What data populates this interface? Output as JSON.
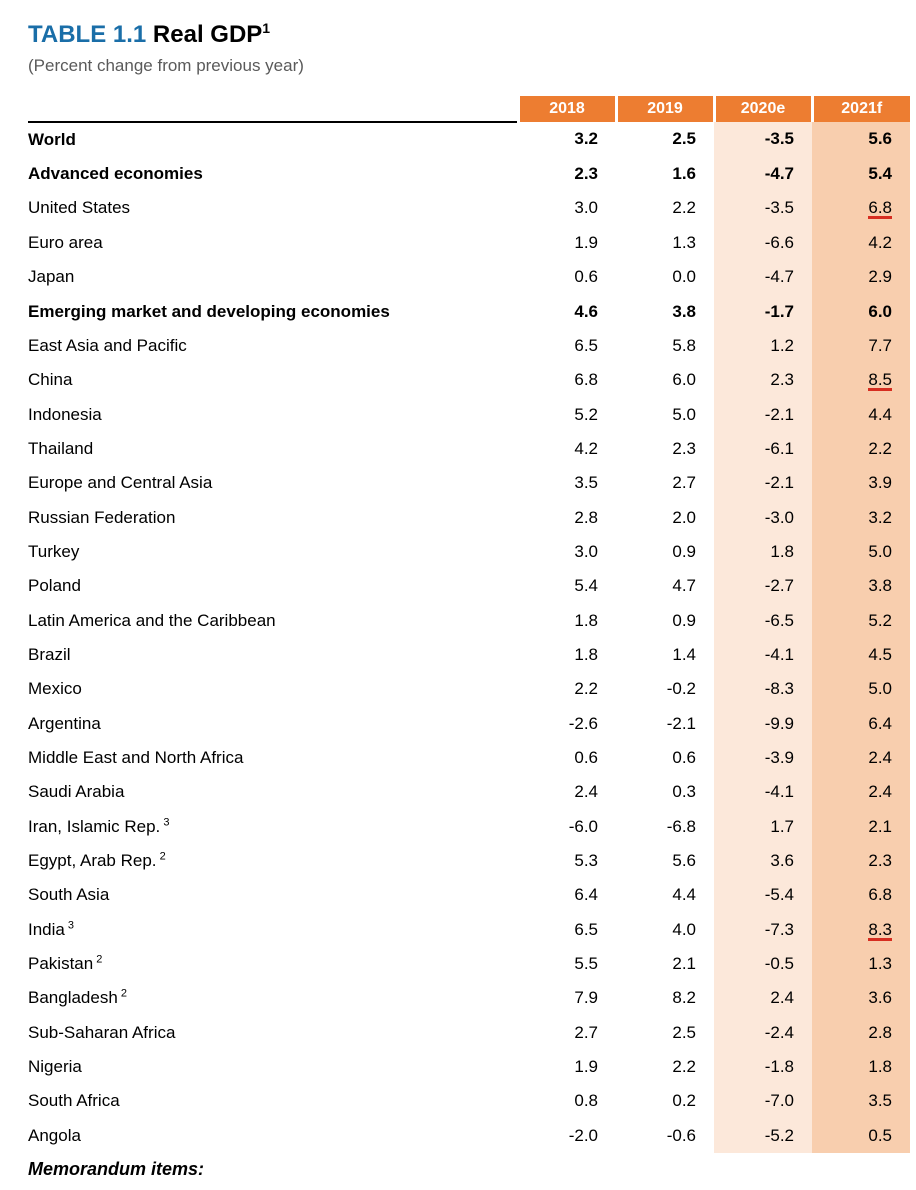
{
  "title_label": "TABLE 1.1",
  "title_text": "Real GDP",
  "title_sup": "1",
  "subtitle": "(Percent change from previous year)",
  "columns": [
    "2018",
    "2019",
    "2020e",
    "2021f"
  ],
  "colors": {
    "header_bg": "#ed7d31",
    "header_fg": "#ffffff",
    "col2020_bg": "#fce8da",
    "col2021_bg": "#f8ceae",
    "title_label": "#1a6ea8",
    "underline": "#d62d20"
  },
  "font": {
    "family": "Arial",
    "body_size_pt": 13,
    "title_size_pt": 18
  },
  "rows": [
    {
      "name": "World",
      "level": 0,
      "v": [
        "3.2",
        "2.5",
        "-3.5",
        "5.6"
      ]
    },
    {
      "name": "Advanced economies",
      "level": 1,
      "v": [
        "2.3",
        "1.6",
        "-4.7",
        "5.4"
      ]
    },
    {
      "name": "United States",
      "level": 2,
      "v": [
        "3.0",
        "2.2",
        "-3.5",
        "6.8"
      ],
      "underline_2021": true
    },
    {
      "name": "Euro area",
      "level": 2,
      "v": [
        "1.9",
        "1.3",
        "-6.6",
        "4.2"
      ]
    },
    {
      "name": "Japan",
      "level": 2,
      "v": [
        "0.6",
        "0.0",
        "-4.7",
        "2.9"
      ]
    },
    {
      "name": "Emerging market and developing economies",
      "level": 1,
      "v": [
        "4.6",
        "3.8",
        "-1.7",
        "6.0"
      ]
    },
    {
      "name": "East Asia and Pacific",
      "level": 2,
      "v": [
        "6.5",
        "5.8",
        "1.2",
        "7.7"
      ]
    },
    {
      "name": "China",
      "level": 3,
      "v": [
        "6.8",
        "6.0",
        "2.3",
        "8.5"
      ],
      "underline_2021": true
    },
    {
      "name": "Indonesia",
      "level": 3,
      "v": [
        "5.2",
        "5.0",
        "-2.1",
        "4.4"
      ]
    },
    {
      "name": "Thailand",
      "level": 3,
      "v": [
        "4.2",
        "2.3",
        "-6.1",
        "2.2"
      ]
    },
    {
      "name": "Europe and Central Asia",
      "level": 2,
      "v": [
        "3.5",
        "2.7",
        "-2.1",
        "3.9"
      ]
    },
    {
      "name": "Russian Federation",
      "level": 3,
      "v": [
        "2.8",
        "2.0",
        "-3.0",
        "3.2"
      ]
    },
    {
      "name": "Turkey",
      "level": 3,
      "v": [
        "3.0",
        "0.9",
        "1.8",
        "5.0"
      ]
    },
    {
      "name": "Poland",
      "level": 3,
      "v": [
        "5.4",
        "4.7",
        "-2.7",
        "3.8"
      ]
    },
    {
      "name": "Latin America and the Caribbean",
      "level": 2,
      "v": [
        "1.8",
        "0.9",
        "-6.5",
        "5.2"
      ]
    },
    {
      "name": "Brazil",
      "level": 3,
      "v": [
        "1.8",
        "1.4",
        "-4.1",
        "4.5"
      ]
    },
    {
      "name": "Mexico",
      "level": 3,
      "v": [
        "2.2",
        "-0.2",
        "-8.3",
        "5.0"
      ]
    },
    {
      "name": "Argentina",
      "level": 3,
      "v": [
        "-2.6",
        "-2.1",
        "-9.9",
        "6.4"
      ]
    },
    {
      "name": "Middle East and North Africa",
      "level": 2,
      "v": [
        "0.6",
        "0.6",
        "-3.9",
        "2.4"
      ]
    },
    {
      "name": "Saudi Arabia",
      "level": 3,
      "v": [
        "2.4",
        "0.3",
        "-4.1",
        "2.4"
      ]
    },
    {
      "name": "Iran, Islamic Rep.",
      "sup": "3",
      "level": 3,
      "v": [
        "-6.0",
        "-6.8",
        "1.7",
        "2.1"
      ]
    },
    {
      "name": "Egypt, Arab Rep.",
      "sup": "2",
      "level": 3,
      "v": [
        "5.3",
        "5.6",
        "3.6",
        "2.3"
      ]
    },
    {
      "name": "South Asia",
      "level": 2,
      "v": [
        "6.4",
        "4.4",
        "-5.4",
        "6.8"
      ]
    },
    {
      "name": "India",
      "sup": "3",
      "level": 3,
      "v": [
        "6.5",
        "4.0",
        "-7.3",
        "8.3"
      ],
      "underline_2021": true
    },
    {
      "name": "Pakistan",
      "sup": "2",
      "level": 3,
      "v": [
        "5.5",
        "2.1",
        "-0.5",
        "1.3"
      ]
    },
    {
      "name": "Bangladesh",
      "sup": "2",
      "level": 3,
      "v": [
        "7.9",
        "8.2",
        "2.4",
        "3.6"
      ]
    },
    {
      "name": "Sub-Saharan Africa",
      "level": 2,
      "v": [
        "2.7",
        "2.5",
        "-2.4",
        "2.8"
      ]
    },
    {
      "name": "Nigeria",
      "level": 3,
      "v": [
        "1.9",
        "2.2",
        "-1.8",
        "1.8"
      ]
    },
    {
      "name": "South Africa",
      "level": 3,
      "v": [
        "0.8",
        "0.2",
        "-7.0",
        "3.5"
      ]
    },
    {
      "name": "Angola",
      "level": 3,
      "v": [
        "-2.0",
        "-0.6",
        "-5.2",
        "0.5"
      ]
    }
  ],
  "memo": "Memorandum items:"
}
